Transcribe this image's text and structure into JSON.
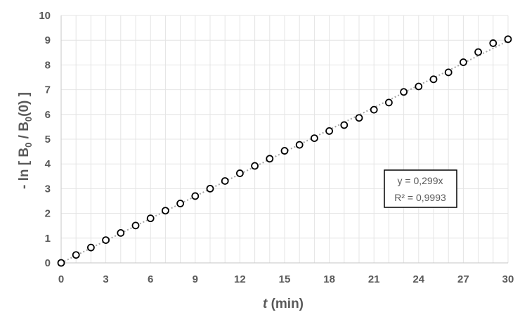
{
  "chart_data": {
    "type": "scatter",
    "x": [
      0,
      1,
      2,
      3,
      4,
      5,
      6,
      7,
      8,
      9,
      10,
      11,
      12,
      13,
      14,
      15,
      16,
      17,
      18,
      19,
      20,
      21,
      22,
      23,
      24,
      25,
      26,
      27,
      28,
      29,
      30
    ],
    "y": [
      0,
      0.32,
      0.62,
      0.92,
      1.21,
      1.51,
      1.8,
      2.11,
      2.4,
      2.7,
      3.0,
      3.31,
      3.62,
      3.92,
      4.21,
      4.53,
      4.77,
      5.04,
      5.33,
      5.57,
      5.86,
      6.19,
      6.48,
      6.91,
      7.13,
      7.42,
      7.7,
      8.11,
      8.52,
      8.88,
      9.04
    ],
    "xlim": [
      0,
      30
    ],
    "ylim": [
      0,
      10
    ],
    "xticks": [
      "0",
      "3",
      "6",
      "9",
      "12",
      "15",
      "18",
      "21",
      "24",
      "27",
      "30"
    ],
    "yticks": [
      "0",
      "1",
      "2",
      "3",
      "4",
      "5",
      "6",
      "7",
      "8",
      "9",
      "10"
    ],
    "xlabel": {
      "italic": "t",
      "rest": " (min)"
    },
    "ylabel": {
      "prefix": "- ln [ B",
      "sub1": "0",
      "mid": " / B",
      "sub2": "0",
      "suffix": "(0) ]"
    },
    "trendline": {
      "slope": 0.299,
      "style": "dotted",
      "color": "#a6a6a6"
    },
    "annotation": {
      "line1": "y = 0,299x",
      "line2": "R² = 0,9993"
    },
    "grid": true,
    "marker_color": "#000000"
  }
}
